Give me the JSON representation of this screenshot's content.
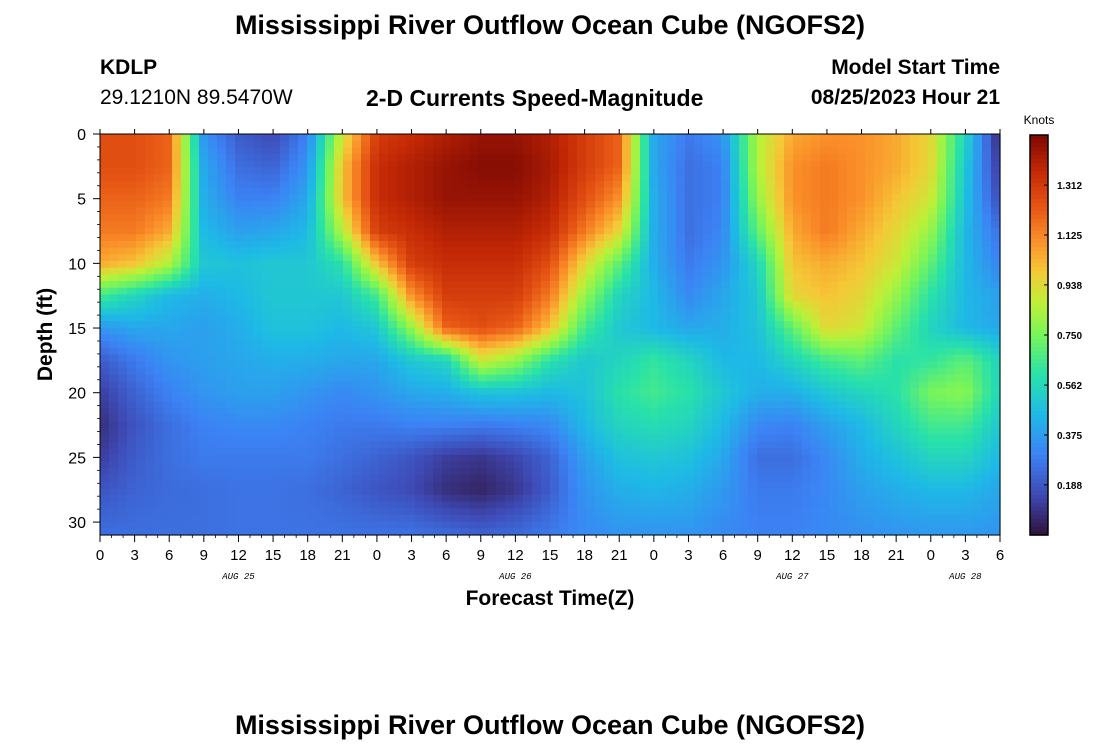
{
  "header": {
    "title": "Mississippi River Outflow Ocean Cube (NGOFS2)",
    "station": "KDLP",
    "coords": "29.1210N  89.5470W",
    "subtitle": "2-D Currents Speed-Magnitude",
    "model_label": "Model Start Time",
    "model_time": "08/25/2023 Hour 21"
  },
  "footer": {
    "title": "Mississippi River Outflow Ocean Cube (NGOFS2)"
  },
  "chart_data": {
    "type": "heatmap",
    "title": "2-D Currents Speed-Magnitude",
    "xlabel": "Forecast Time(Z)",
    "ylabel": "Depth (ft)",
    "x_unit": "hours since 08/25 00Z",
    "xlim": [
      0,
      78
    ],
    "ylim": [
      31,
      0
    ],
    "x_ticks": [
      0,
      3,
      6,
      9,
      12,
      15,
      18,
      21,
      24,
      27,
      30,
      33,
      36,
      39,
      42,
      45,
      48,
      51,
      54,
      57,
      60,
      63,
      66,
      69,
      72,
      75,
      78
    ],
    "x_tick_labels": [
      "0",
      "3",
      "6",
      "9",
      "12",
      "15",
      "18",
      "21",
      "0",
      "3",
      "6",
      "9",
      "12",
      "15",
      "18",
      "21",
      "0",
      "3",
      "6",
      "9",
      "12",
      "15",
      "18",
      "21",
      "0",
      "3",
      "6"
    ],
    "date_labels": [
      {
        "hour": 12,
        "label": "AUG 25"
      },
      {
        "hour": 36,
        "label": "AUG 26"
      },
      {
        "hour": 60,
        "label": "AUG 27"
      },
      {
        "hour": 75,
        "label": "AUG 28"
      }
    ],
    "y_ticks": [
      0,
      5,
      10,
      15,
      20,
      25,
      30
    ],
    "y_tick_labels": [
      "0",
      "5",
      "10",
      "15",
      "20",
      "25",
      "30"
    ],
    "colorbar": {
      "label": "Knots",
      "min": 0,
      "max": 1.5,
      "ticks": [
        1.312,
        1.125,
        0.938,
        0.75,
        0.562,
        0.375,
        0.188
      ],
      "tick_labels": [
        "1.312",
        "1.125",
        "0.938",
        "0.750",
        "0.562",
        "0.375",
        "0.188"
      ]
    },
    "x": [
      0,
      3,
      6,
      9,
      12,
      15,
      18,
      21,
      24,
      27,
      30,
      33,
      36,
      39,
      42,
      45,
      48,
      51,
      54,
      57,
      60,
      63,
      66,
      69,
      72,
      75,
      78
    ],
    "y": [
      0,
      2.5,
      5,
      7.5,
      10,
      12.5,
      15,
      17.5,
      20,
      22.5,
      25,
      27.5,
      31
    ],
    "z": [
      [
        1.25,
        1.25,
        1.2,
        0.35,
        0.2,
        0.15,
        0.3,
        0.9,
        1.3,
        1.35,
        1.4,
        1.45,
        1.45,
        1.4,
        1.3,
        1.2,
        0.4,
        0.28,
        0.35,
        0.85,
        1.05,
        1.1,
        1.1,
        1.05,
        0.95,
        0.55,
        0.05
      ],
      [
        1.25,
        1.25,
        1.2,
        0.4,
        0.25,
        0.22,
        0.35,
        1.0,
        1.35,
        1.4,
        1.45,
        1.48,
        1.48,
        1.42,
        1.3,
        1.2,
        0.4,
        0.25,
        0.3,
        0.85,
        1.1,
        1.15,
        1.1,
        1.05,
        0.95,
        0.5,
        0.1
      ],
      [
        1.2,
        1.2,
        1.15,
        0.42,
        0.3,
        0.3,
        0.4,
        1.0,
        1.35,
        1.4,
        1.45,
        1.45,
        1.45,
        1.4,
        1.25,
        1.1,
        0.42,
        0.25,
        0.3,
        0.8,
        1.1,
        1.15,
        1.1,
        1.0,
        0.9,
        0.48,
        0.15
      ],
      [
        1.15,
        1.15,
        1.05,
        0.45,
        0.38,
        0.4,
        0.45,
        0.85,
        1.3,
        1.35,
        1.4,
        1.4,
        1.4,
        1.35,
        1.15,
        0.95,
        0.42,
        0.25,
        0.32,
        0.7,
        1.05,
        1.15,
        1.05,
        0.95,
        0.8,
        0.45,
        0.25
      ],
      [
        1.05,
        1.0,
        0.85,
        0.5,
        0.48,
        0.5,
        0.5,
        0.6,
        1.0,
        1.3,
        1.35,
        1.35,
        1.35,
        1.25,
        0.95,
        0.7,
        0.42,
        0.28,
        0.35,
        0.55,
        1.0,
        1.05,
        1.0,
        0.9,
        0.7,
        0.45,
        0.3
      ],
      [
        0.65,
        0.55,
        0.45,
        0.42,
        0.45,
        0.5,
        0.5,
        0.5,
        0.65,
        1.1,
        1.3,
        1.3,
        1.3,
        1.15,
        0.8,
        0.55,
        0.45,
        0.32,
        0.4,
        0.5,
        0.95,
        1.0,
        0.95,
        0.8,
        0.6,
        0.45,
        0.38
      ],
      [
        0.35,
        0.4,
        0.4,
        0.38,
        0.42,
        0.48,
        0.48,
        0.45,
        0.5,
        0.8,
        1.2,
        1.25,
        1.2,
        1.0,
        0.65,
        0.5,
        0.45,
        0.4,
        0.42,
        0.48,
        0.7,
        0.95,
        0.9,
        0.7,
        0.55,
        0.45,
        0.4
      ],
      [
        0.2,
        0.28,
        0.35,
        0.38,
        0.4,
        0.42,
        0.42,
        0.4,
        0.4,
        0.5,
        0.55,
        0.9,
        0.8,
        0.6,
        0.5,
        0.55,
        0.62,
        0.55,
        0.45,
        0.45,
        0.55,
        0.65,
        0.7,
        0.6,
        0.62,
        0.7,
        0.55
      ],
      [
        0.12,
        0.22,
        0.3,
        0.35,
        0.38,
        0.38,
        0.35,
        0.32,
        0.35,
        0.4,
        0.42,
        0.48,
        0.48,
        0.45,
        0.48,
        0.6,
        0.65,
        0.6,
        0.5,
        0.42,
        0.42,
        0.5,
        0.55,
        0.6,
        0.75,
        0.78,
        0.55
      ],
      [
        0.08,
        0.18,
        0.25,
        0.3,
        0.32,
        0.32,
        0.3,
        0.28,
        0.28,
        0.3,
        0.3,
        0.28,
        0.3,
        0.32,
        0.45,
        0.55,
        0.58,
        0.55,
        0.45,
        0.32,
        0.3,
        0.38,
        0.45,
        0.55,
        0.65,
        0.65,
        0.5
      ],
      [
        0.12,
        0.2,
        0.25,
        0.28,
        0.28,
        0.28,
        0.28,
        0.25,
        0.22,
        0.18,
        0.12,
        0.1,
        0.14,
        0.22,
        0.38,
        0.48,
        0.5,
        0.48,
        0.4,
        0.25,
        0.25,
        0.32,
        0.42,
        0.48,
        0.55,
        0.55,
        0.45
      ],
      [
        0.18,
        0.22,
        0.24,
        0.25,
        0.26,
        0.26,
        0.25,
        0.22,
        0.18,
        0.15,
        0.08,
        0.05,
        0.1,
        0.2,
        0.35,
        0.42,
        0.44,
        0.42,
        0.36,
        0.28,
        0.28,
        0.32,
        0.38,
        0.42,
        0.45,
        0.45,
        0.4
      ],
      [
        0.25,
        0.25,
        0.25,
        0.25,
        0.26,
        0.26,
        0.26,
        0.26,
        0.26,
        0.26,
        0.24,
        0.22,
        0.24,
        0.28,
        0.32,
        0.35,
        0.35,
        0.35,
        0.32,
        0.3,
        0.3,
        0.32,
        0.34,
        0.35,
        0.36,
        0.36,
        0.35
      ]
    ]
  }
}
